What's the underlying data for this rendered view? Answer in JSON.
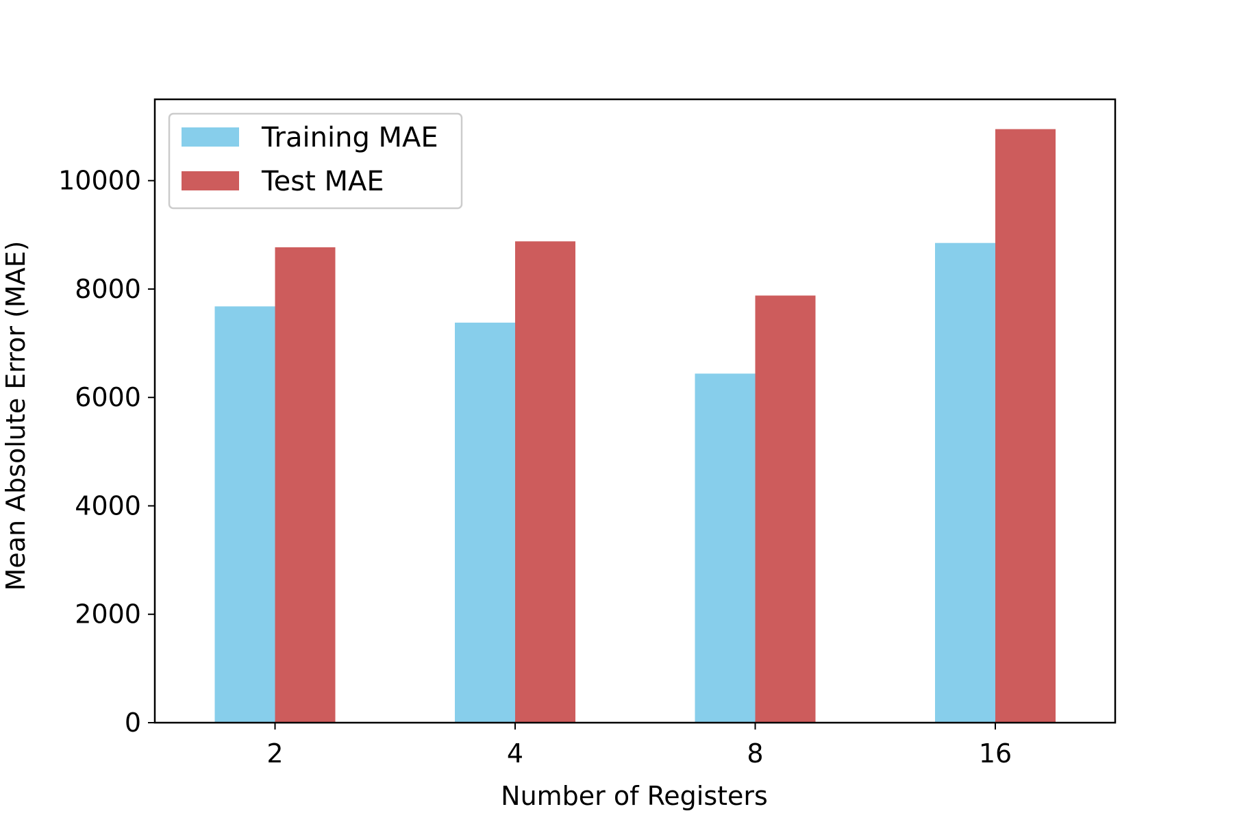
{
  "chart_data": {
    "type": "bar",
    "title": "",
    "xlabel": "Number of Registers",
    "ylabel": "Mean Absolute Error (MAE)",
    "categories": [
      "2",
      "4",
      "8",
      "16"
    ],
    "series": [
      {
        "name": "Training MAE",
        "color": "#87CEEB",
        "values": [
          7680,
          7380,
          6440,
          8850
        ]
      },
      {
        "name": "Test MAE",
        "color": "#CD5C5C",
        "values": [
          8770,
          8880,
          7880,
          10950
        ]
      }
    ],
    "ylim": [
      0,
      11500
    ],
    "yticks": [
      0,
      2000,
      4000,
      6000,
      8000,
      10000
    ],
    "grid": false,
    "legend": "top-left"
  }
}
